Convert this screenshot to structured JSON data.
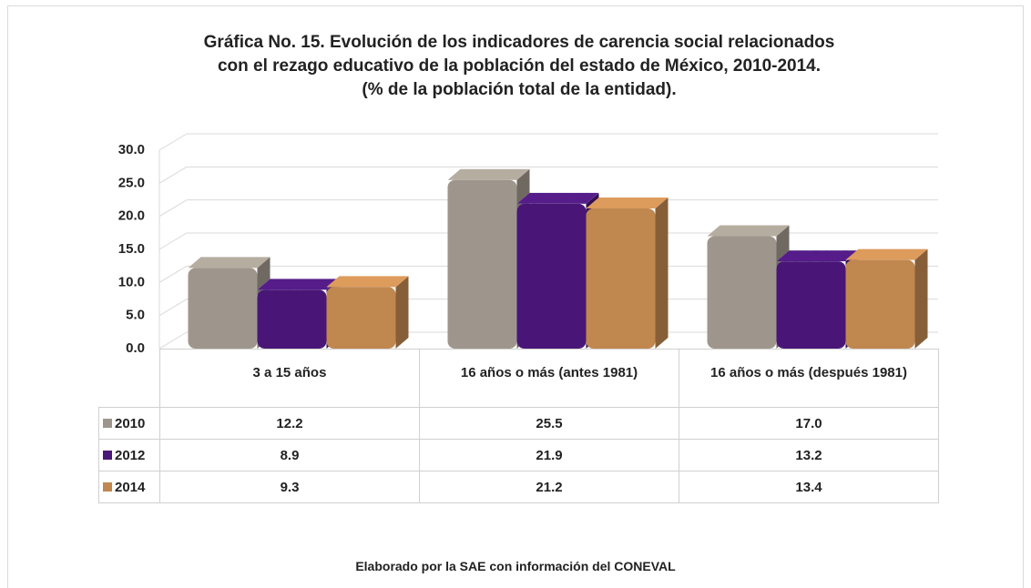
{
  "chart_data": {
    "type": "bar",
    "title": "Gráfica No. 15. Evolución de los indicadores de carencia social relacionados con el rezago educativo de la población del estado de México, 2010-2014.",
    "subtitle": "(% de la población total de la entidad).",
    "source": "Elaborado por la SAE con información del CONEVAL",
    "categories": [
      "3 a 15 años",
      "16 años o más (antes 1981)",
      "16 años o más (después 1981)"
    ],
    "series": [
      {
        "name": "2010",
        "color": "#9e968c",
        "values": [
          12.2,
          25.5,
          17.0
        ],
        "value_labels": [
          "12.2",
          "25.5",
          "17.0"
        ]
      },
      {
        "name": "2012",
        "color": "#4a1878",
        "values": [
          8.9,
          21.9,
          13.2
        ],
        "value_labels": [
          "8.9",
          "21.9",
          "13.2"
        ]
      },
      {
        "name": "2014",
        "color": "#c0874f",
        "values": [
          9.3,
          21.2,
          13.4
        ],
        "value_labels": [
          "9.3",
          "21.2",
          "13.4"
        ]
      }
    ],
    "ylim": [
      0,
      30
    ],
    "yticks": [
      {
        "value": 0,
        "label": "0.0"
      },
      {
        "value": 5,
        "label": "5.0"
      },
      {
        "value": 10,
        "label": "10.0"
      },
      {
        "value": 15,
        "label": "15.0"
      },
      {
        "value": 20,
        "label": "20.0"
      },
      {
        "value": 25,
        "label": "25.0"
      },
      {
        "value": 30,
        "label": "30.0"
      }
    ],
    "grid": true
  }
}
